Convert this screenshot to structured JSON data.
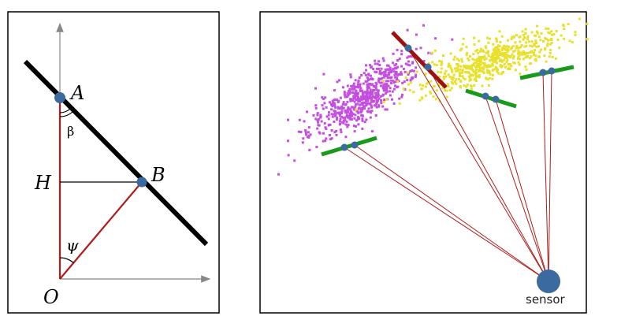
{
  "left_panel": {
    "point_a_label": "A",
    "point_b_label": "B",
    "point_h_label": "H",
    "point_o_label": "O",
    "angle_beta_label": "β",
    "angle_psi_label": "ψ"
  },
  "right_panel": {
    "sensor_label": "sensor"
  },
  "colors": {
    "frame": "#000000",
    "line_black": "#000000",
    "ray_red": "#b01c1c",
    "segment_darkred": "#9b1010",
    "segment_green": "#1a9a1a",
    "point_blue": "#3a6aa0",
    "cloud_magenta": "#c44ee0",
    "cloud_yellow": "#e8e02a",
    "axis_gray": "#888888"
  }
}
